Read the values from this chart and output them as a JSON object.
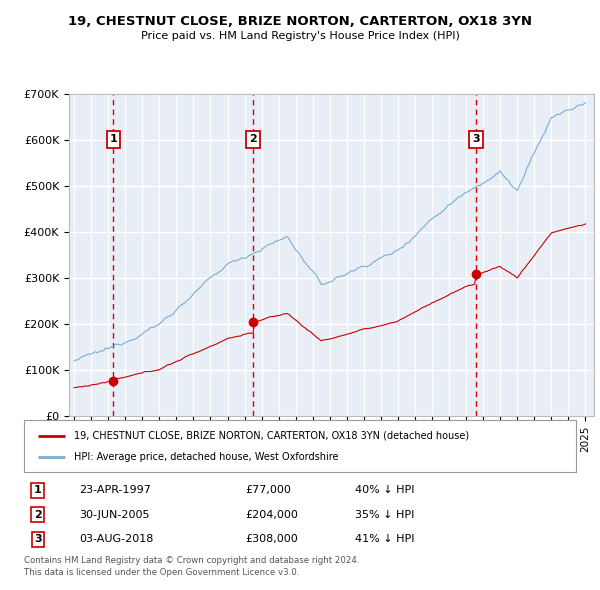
{
  "title": "19, CHESTNUT CLOSE, BRIZE NORTON, CARTERTON, OX18 3YN",
  "subtitle": "Price paid vs. HM Land Registry's House Price Index (HPI)",
  "ylim": [
    0,
    700000
  ],
  "yticks": [
    0,
    100000,
    200000,
    300000,
    400000,
    500000,
    600000,
    700000
  ],
  "ytick_labels": [
    "£0",
    "£100K",
    "£200K",
    "£300K",
    "£400K",
    "£500K",
    "£600K",
    "£700K"
  ],
  "xlim_start": 1994.7,
  "xlim_end": 2025.5,
  "purchases": [
    {
      "date": 1997.31,
      "price": 77000,
      "label": "1",
      "display": "23-APR-1997",
      "price_str": "£77,000",
      "hpi_str": "40% ↓ HPI"
    },
    {
      "date": 2005.5,
      "price": 204000,
      "label": "2",
      "display": "30-JUN-2005",
      "price_str": "£204,000",
      "hpi_str": "35% ↓ HPI"
    },
    {
      "date": 2018.58,
      "price": 308000,
      "label": "3",
      "display": "03-AUG-2018",
      "price_str": "£308,000",
      "hpi_str": "41% ↓ HPI"
    }
  ],
  "legend_line1": "19, CHESTNUT CLOSE, BRIZE NORTON, CARTERTON, OX18 3YN (detached house)",
  "legend_line2": "HPI: Average price, detached house, West Oxfordshire",
  "footer1": "Contains HM Land Registry data © Crown copyright and database right 2024.",
  "footer2": "This data is licensed under the Open Government Licence v3.0.",
  "red_color": "#cc0000",
  "blue_color": "#7aaed4",
  "bg_color": "#e8eef6",
  "grid_color": "#ffffff",
  "vline_color": "#dd0000"
}
